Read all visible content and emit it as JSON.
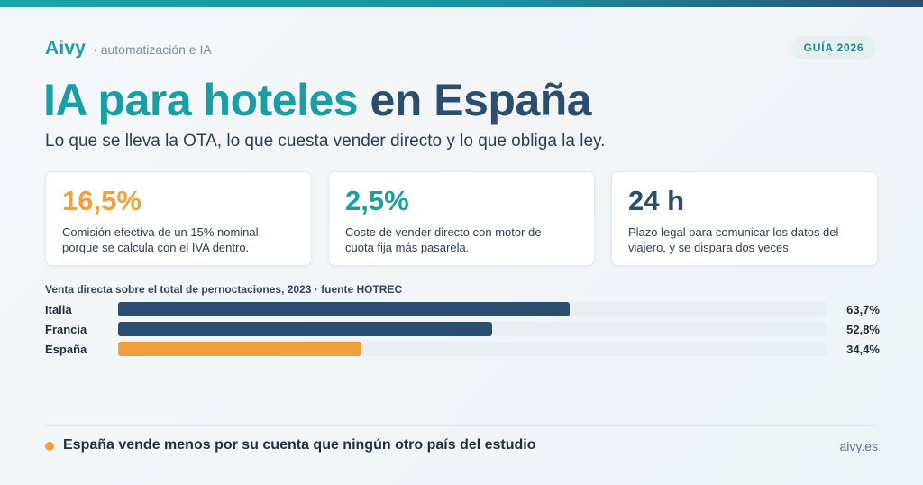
{
  "brand": {
    "name": "Aivy",
    "tagline": "· automatización e IA"
  },
  "badge": "GUÍA 2026",
  "title": {
    "highlight": "IA para hoteles",
    "rest": "en España"
  },
  "subtitle": "Lo que se lleva la OTA, lo que cuesta vender directo y lo que obliga la ley.",
  "cards": [
    {
      "value": "16,5%",
      "color": "#f2a03d",
      "desc_line1": "Comisión efectiva de un 15% nominal,",
      "desc_line2": "porque se calcula con el IVA dentro."
    },
    {
      "value": "2,5%",
      "color": "#1a9ea3",
      "desc_line1": "Coste de vender directo con motor de",
      "desc_line2": "cuota fija más pasarela."
    },
    {
      "value": "24 h",
      "color": "#2c4e6e",
      "desc_line1": "Plazo legal para comunicar los datos del",
      "desc_line2": "viajero, y se dispara dos veces."
    }
  ],
  "chart_data": {
    "type": "bar",
    "title": "Venta directa sobre el total de pernoctaciones, 2023 · fuente HOTREC",
    "categories": [
      "Italia",
      "Francia",
      "España"
    ],
    "values": [
      63.7,
      52.8,
      34.4
    ],
    "value_labels": [
      "63,7%",
      "52,8%",
      "34,4%"
    ],
    "colors": [
      "#2c4e6e",
      "#2c4e6e",
      "#f2a03d"
    ],
    "xlim": [
      0,
      100
    ],
    "orientation": "horizontal"
  },
  "footer": {
    "text": "España vende menos por su cuenta que ningún otro país del estudio",
    "url": "aivy.es"
  }
}
